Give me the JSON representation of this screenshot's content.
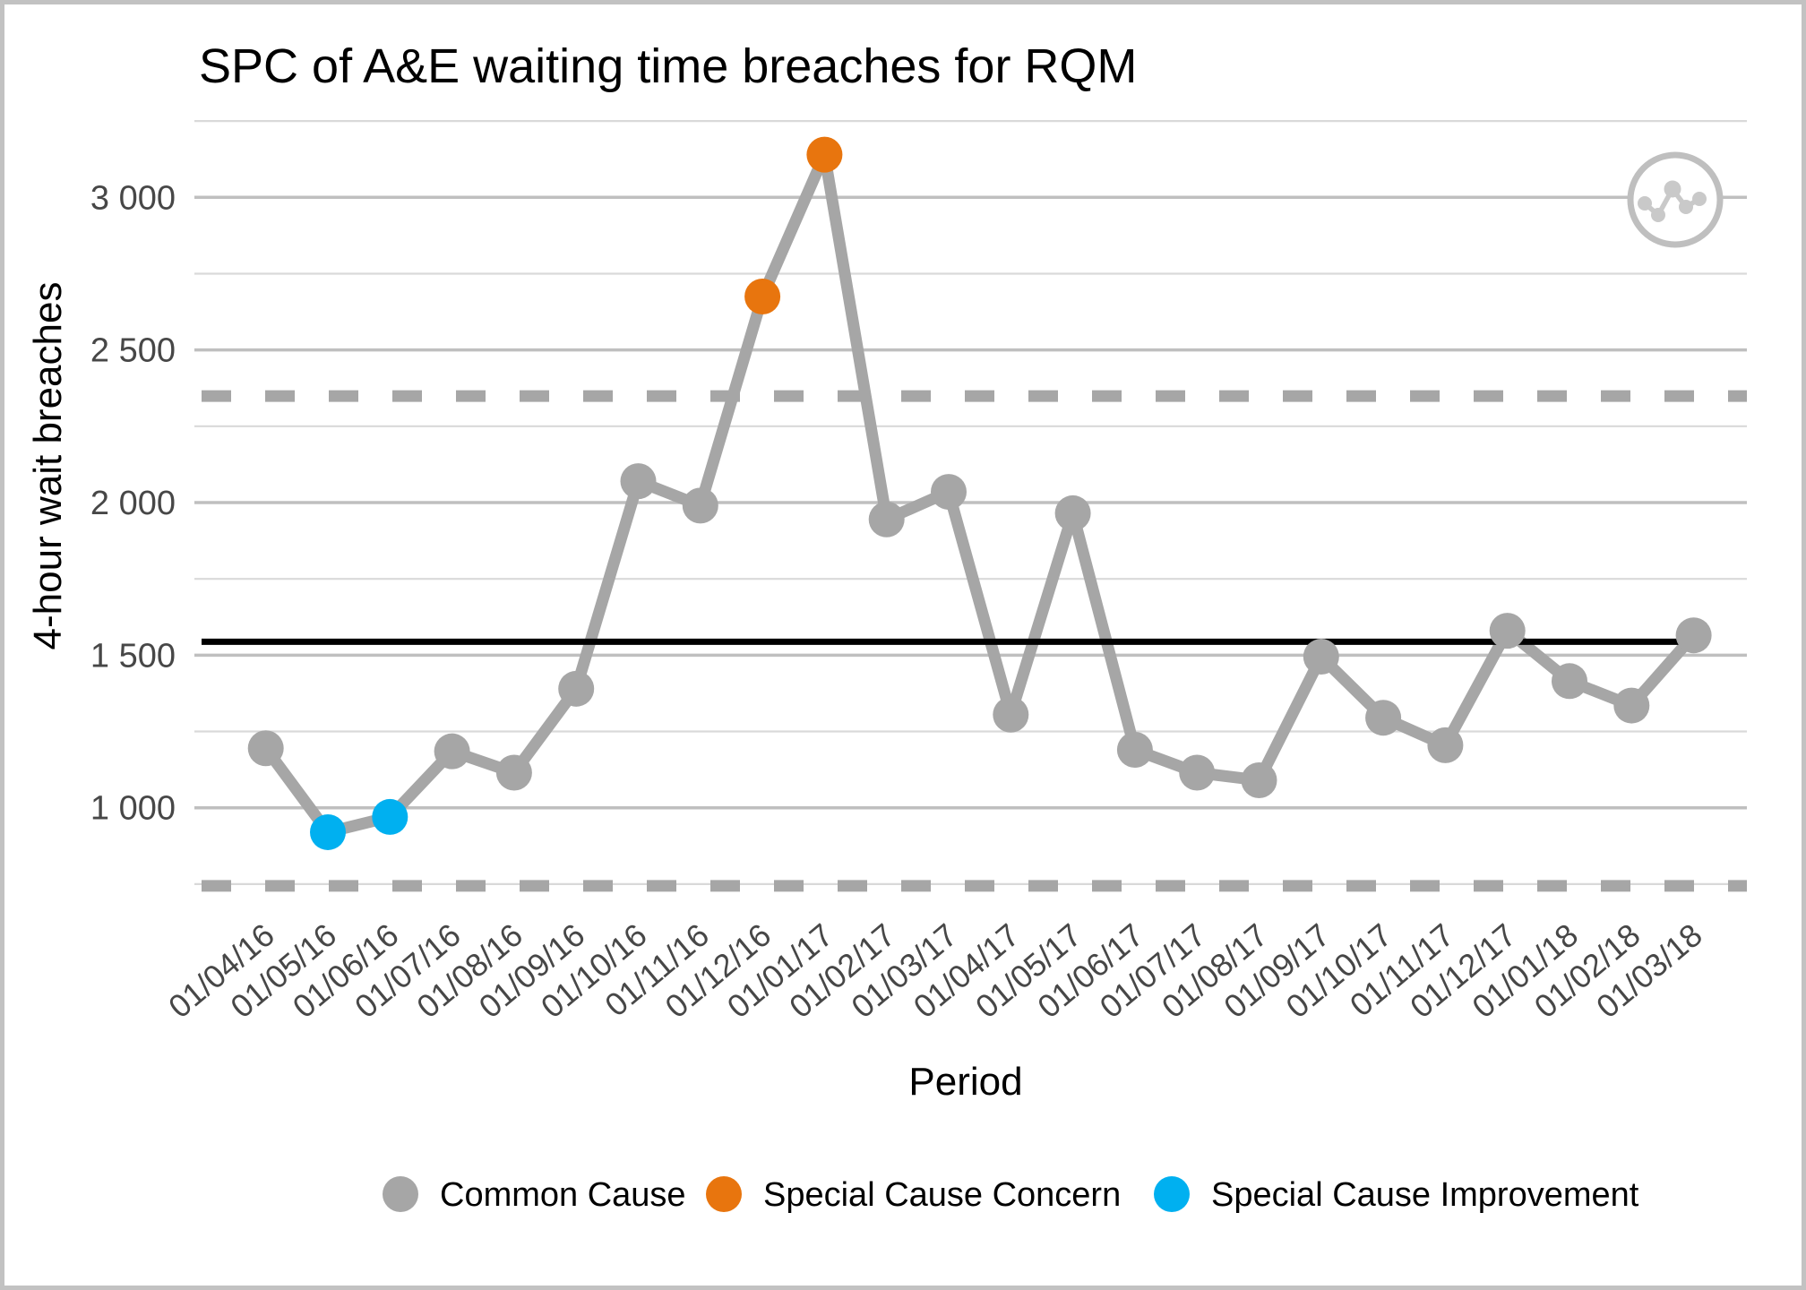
{
  "chart_data": {
    "type": "line",
    "title": "SPC of A&E waiting time breaches for RQM",
    "xlabel": "Period",
    "ylabel": "4-hour wait breaches",
    "x": [
      "01/04/16",
      "01/05/16",
      "01/06/16",
      "01/07/16",
      "01/08/16",
      "01/09/16",
      "01/10/16",
      "01/11/16",
      "01/12/16",
      "01/01/17",
      "01/02/17",
      "01/03/17",
      "01/04/17",
      "01/05/17",
      "01/06/17",
      "01/07/17",
      "01/08/17",
      "01/09/17",
      "01/10/17",
      "01/11/17",
      "01/12/17",
      "01/01/18",
      "01/02/18",
      "01/03/18"
    ],
    "series": [
      {
        "name": "4-hour wait breaches",
        "values": [
          1195,
          920,
          970,
          1185,
          1115,
          1390,
          2070,
          1990,
          2675,
          3140,
          1945,
          2035,
          1305,
          1965,
          1190,
          1115,
          1090,
          1495,
          1295,
          1205,
          1580,
          1415,
          1335,
          1565
        ]
      }
    ],
    "point_categories": [
      "common",
      "improvement",
      "improvement",
      "common",
      "common",
      "common",
      "common",
      "common",
      "concern",
      "concern",
      "common",
      "common",
      "common",
      "common",
      "common",
      "common",
      "common",
      "common",
      "common",
      "common",
      "common",
      "common",
      "common",
      "common"
    ],
    "control_lines": {
      "mean": 1544,
      "upper_limit": 2349,
      "lower_limit": 744
    },
    "y_ticks": [
      1000,
      1500,
      2000,
      2500,
      3000
    ],
    "y_tick_labels": [
      "1 000",
      "1 500",
      "2 000",
      "2 500",
      "3 000"
    ],
    "y_minor_gridlines": [
      750,
      1250,
      1750,
      2250,
      2750,
      3250
    ],
    "ylim": [
      650,
      3250
    ],
    "grid": "on",
    "legend_position": "bottom",
    "legend": [
      {
        "label": "Common Cause",
        "color": "#a6a6a6"
      },
      {
        "label": "Special Cause Concern",
        "color": "#e8750e"
      },
      {
        "label": "Special Cause Improvement",
        "color": "#00b0f0"
      }
    ]
  },
  "colors": {
    "common": "#a6a6a6",
    "concern": "#e8750e",
    "improvement": "#00b0f0",
    "series_line": "#a6a6a6",
    "mean_line": "#000000",
    "limit_line": "#a6a6a6",
    "major_grid": "#bfbfbf",
    "minor_grid": "#d9d9d9",
    "tick_text": "#474747",
    "frame_border": "#c2c2c2",
    "icon_gray": "#c9c9c9"
  },
  "icon": {
    "name": "line-chart-circle-icon"
  }
}
